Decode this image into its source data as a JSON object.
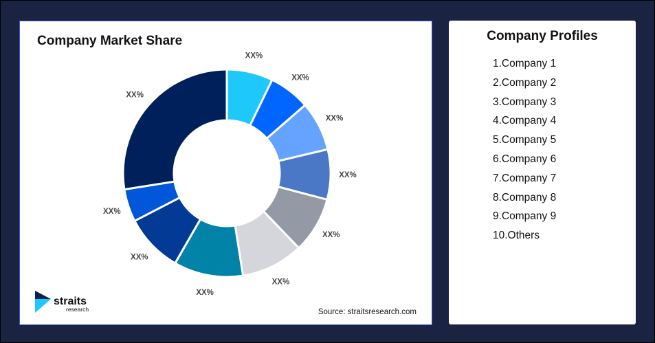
{
  "chart_data": {
    "type": "pie",
    "title": "Company Market Share",
    "donut": true,
    "categories": [
      "Company 1",
      "Company 2",
      "Company 3",
      "Company 4",
      "Company 5",
      "Company 6",
      "Company 7",
      "Company 8",
      "Company 9",
      "Others"
    ],
    "values": [
      7.2,
      6.4,
      7.7,
      7.8,
      8.7,
      9.7,
      10.8,
      9.1,
      5.1,
      27.5
    ],
    "data_labels": [
      "XX%",
      "XX%",
      "XX%",
      "XX%",
      "XX%",
      "XX%",
      "XX%",
      "XX%",
      "XX%",
      "XX%"
    ],
    "colors": [
      "#1ec8fa",
      "#0066ff",
      "#64a3ff",
      "#4a78c7",
      "#9499a6",
      "#d4d6dc",
      "#0083a6",
      "#023a96",
      "#0057d9",
      "#00205c"
    ]
  },
  "source": "Source: straitsresearch.com",
  "logo": {
    "name": "straits",
    "sub": "research"
  },
  "profiles": {
    "title": "Company Profiles",
    "items": [
      "1.Company 1",
      "2.Company 2",
      "3.Company 3",
      "4.Company 4",
      "5.Company 5",
      "6.Company 6",
      "7.Company 7",
      "8.Company 8",
      "9.Company 9",
      "10.Others"
    ]
  },
  "colors": {
    "background": "#1b2342",
    "card": "#ffffff"
  }
}
